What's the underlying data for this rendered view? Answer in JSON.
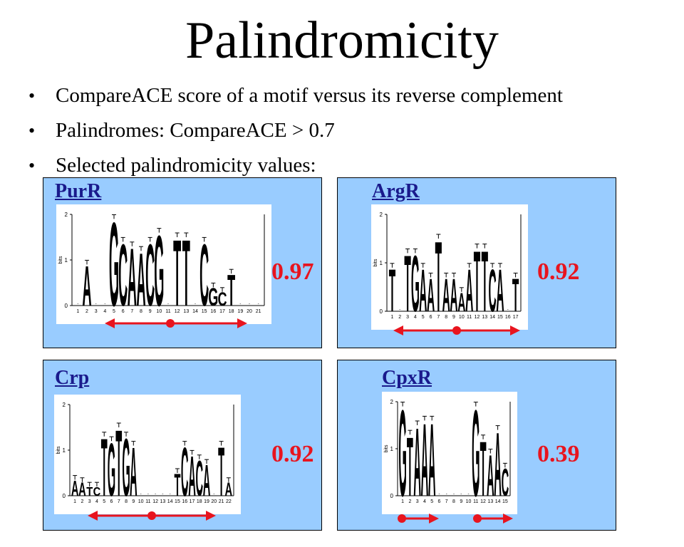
{
  "title": "Palindromicity",
  "bullets": [
    "CompareACE score of a motif versus its reverse complement",
    "Palindromes:  CompareACE > 0.7",
    "Selected palindromicity values:"
  ],
  "bullet_glyph": "•",
  "colors": {
    "panel_bg": "#99ccff",
    "name": "#1a1a8c",
    "score": "#e8141e",
    "arrow": "#e8141e"
  },
  "axis_labels": {
    "ylabel": "bits",
    "ticks": [
      "2",
      "1",
      "0"
    ]
  },
  "panels": [
    {
      "name": "PurR",
      "score": "0.97",
      "sequence": [
        "",
        "A",
        "",
        "",
        "G",
        "C",
        "A",
        "A",
        "C",
        "G",
        "",
        "T",
        "T",
        "",
        "C",
        "G",
        "C",
        "T",
        "",
        "",
        ""
      ],
      "heights": [
        0.05,
        0.9,
        0.05,
        0.1,
        1.9,
        1.4,
        1.3,
        1.2,
        1.4,
        1.6,
        0.5,
        1.5,
        1.5,
        0.3,
        1.4,
        0.4,
        0.3,
        0.7,
        0.05,
        0.05,
        0.1
      ]
    },
    {
      "name": "ArgR",
      "score": "0.92",
      "sequence": [
        "T",
        "",
        "T",
        "G",
        "A",
        "A",
        "T",
        "A",
        "A",
        "A",
        "A",
        "T",
        "T",
        "C",
        "A",
        "",
        "T"
      ],
      "heights": [
        0.9,
        0.1,
        1.2,
        1.2,
        0.9,
        0.7,
        1.5,
        0.7,
        0.7,
        0.4,
        0.9,
        1.3,
        1.3,
        0.9,
        0.9,
        0.05,
        0.7
      ]
    },
    {
      "name": "Crp",
      "score": "0.92",
      "sequence": [
        "A",
        "A",
        "T",
        "C",
        "T",
        "G",
        "T",
        "G",
        "A",
        "",
        "",
        "",
        "",
        "",
        "T",
        "C",
        "A",
        "C",
        "A",
        "",
        "T",
        "A"
      ],
      "heights": [
        0.35,
        0.3,
        0.2,
        0.2,
        1.3,
        1.2,
        1.5,
        1.3,
        1.1,
        0.05,
        0.05,
        0.1,
        0.05,
        0.05,
        0.5,
        1.1,
        0.9,
        0.8,
        0.7,
        0.2,
        1.1,
        0.3
      ]
    },
    {
      "name": "CpxR",
      "score": "0.39",
      "sequence": [
        "G",
        "T",
        "A",
        "A",
        "A",
        "",
        "",
        "",
        "",
        "",
        "G",
        "T",
        "A",
        "A",
        "C"
      ],
      "heights": [
        1.9,
        1.3,
        1.5,
        1.6,
        1.6,
        0.05,
        0.05,
        0.05,
        0.05,
        0.05,
        1.9,
        1.2,
        0.9,
        1.4,
        0.6
      ]
    }
  ]
}
